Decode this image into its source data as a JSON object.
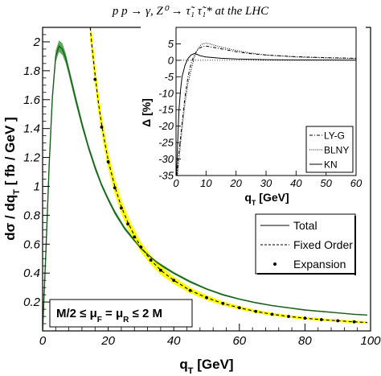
{
  "title": "p p → γ, Z⁰ → τ̃₁ τ̃₁* at the LHC",
  "chart_data": [
    {
      "type": "line",
      "xlabel": "q_T [GeV]",
      "ylabel": "dσ / dq_T [ fb / GeV ]",
      "xlim": [
        0,
        100
      ],
      "ylim": [
        0,
        2.1
      ],
      "xticks": [
        0,
        20,
        40,
        60,
        80,
        100
      ],
      "yticks": [
        0.2,
        0.4,
        0.6,
        0.8,
        1,
        1.2,
        1.4,
        1.6,
        1.8,
        2
      ],
      "grid": false,
      "legend_position": "right",
      "annotation": "M/2 ≤ μ_F = μ_R ≤ 2 M",
      "series": [
        {
          "name": "Total",
          "style": "solid",
          "color": "#1a5c1a",
          "band_color": "#3a9a3a",
          "x": [
            0,
            1,
            2,
            3,
            4,
            5,
            6,
            7,
            8,
            10,
            12,
            14,
            16,
            18,
            20,
            22,
            25,
            30,
            35,
            40,
            45,
            50,
            55,
            60,
            65,
            70,
            75,
            80,
            85,
            90,
            95,
            99
          ],
          "y": [
            0,
            0.55,
            1.15,
            1.62,
            1.9,
            1.97,
            1.95,
            1.89,
            1.8,
            1.61,
            1.43,
            1.27,
            1.13,
            1.01,
            0.91,
            0.82,
            0.71,
            0.57,
            0.47,
            0.4,
            0.34,
            0.29,
            0.25,
            0.22,
            0.195,
            0.175,
            0.16,
            0.145,
            0.135,
            0.125,
            0.115,
            0.11
          ],
          "band_halfwidth": [
            0,
            0.01,
            0.02,
            0.03,
            0.04,
            0.04,
            0.04,
            0.035,
            0.03,
            0.03,
            0.025,
            0.02,
            0.02,
            0.015,
            0.015,
            0.015,
            0.012,
            0.01,
            0.01,
            0.008,
            0.008,
            0.006,
            0.006,
            0.005,
            0.005,
            0.004,
            0.004,
            0.004,
            0.004,
            0.003,
            0.003,
            0.003
          ]
        },
        {
          "name": "Fixed Order",
          "style": "dashed",
          "color": "#000000",
          "band_color": "#ffff00",
          "x": [
            14.5,
            15,
            16,
            17,
            18,
            19,
            20,
            22,
            24,
            26,
            28,
            30,
            33,
            36,
            40,
            45,
            50,
            55,
            60,
            65,
            70,
            75,
            80,
            85,
            90,
            95,
            99
          ],
          "y": [
            2.1,
            1.98,
            1.77,
            1.58,
            1.43,
            1.3,
            1.18,
            1.0,
            0.86,
            0.75,
            0.66,
            0.58,
            0.49,
            0.42,
            0.35,
            0.28,
            0.23,
            0.19,
            0.16,
            0.135,
            0.115,
            0.1,
            0.088,
            0.078,
            0.07,
            0.063,
            0.058
          ],
          "band_halfwidth": [
            0.09,
            0.085,
            0.08,
            0.075,
            0.07,
            0.065,
            0.06,
            0.055,
            0.05,
            0.045,
            0.04,
            0.035,
            0.032,
            0.03,
            0.025,
            0.02,
            0.018,
            0.015,
            0.013,
            0.012,
            0.011,
            0.01,
            0.01,
            0.01,
            0.009,
            0.009,
            0.009
          ]
        },
        {
          "name": "Expansion",
          "style": "dots",
          "color": "#000000",
          "x": [
            16,
            18,
            20,
            22,
            24,
            26,
            28,
            30,
            33,
            36,
            40,
            45,
            50,
            55,
            60,
            65,
            70,
            75,
            80,
            85,
            90,
            95
          ],
          "y": [
            1.74,
            1.41,
            1.17,
            0.99,
            0.85,
            0.74,
            0.65,
            0.58,
            0.49,
            0.42,
            0.35,
            0.28,
            0.23,
            0.19,
            0.16,
            0.135,
            0.115,
            0.1,
            0.088,
            0.078,
            0.07,
            0.063
          ]
        }
      ]
    },
    {
      "type": "line",
      "xlabel": "q_T [GeV]",
      "ylabel": "Δ [%]",
      "xlim": [
        0,
        60
      ],
      "ylim": [
        -35,
        10
      ],
      "xticks": [
        0,
        10,
        20,
        30,
        40,
        50,
        60
      ],
      "yticks": [
        -35,
        -30,
        -25,
        -20,
        -15,
        -10,
        -5,
        0,
        5
      ],
      "grid": false,
      "legend_position": "bottom-right",
      "series": [
        {
          "name": "LY-G",
          "style": "dashdot",
          "x": [
            0.3,
            1,
            2,
            3,
            4,
            5,
            6,
            7,
            8,
            9,
            10,
            12,
            15,
            20,
            25,
            30,
            40,
            50,
            60
          ],
          "y": [
            -35,
            -28,
            -19,
            -11,
            -5,
            -1,
            1.5,
            3,
            3.8,
            4.2,
            4.3,
            4.0,
            3.5,
            2.6,
            2.0,
            1.6,
            1.1,
            0.8,
            0.6
          ]
        },
        {
          "name": "BLNY",
          "style": "dotted",
          "x": [
            0.5,
            1,
            2,
            3,
            4,
            5,
            6,
            7,
            8,
            9,
            10,
            12,
            15,
            20,
            25,
            30,
            40,
            50,
            60
          ],
          "y": [
            -35,
            -30,
            -21,
            -13,
            -7,
            -3,
            0.5,
            3,
            4.5,
            5.0,
            5.2,
            4.8,
            4.0,
            3.0,
            2.2,
            1.6,
            1.0,
            0.7,
            0.5
          ]
        },
        {
          "name": "KN",
          "style": "solid",
          "x": [
            0.2,
            0.5,
            1,
            1.5,
            2,
            3,
            4,
            5,
            6,
            7,
            8,
            10,
            15,
            20,
            30,
            40,
            50,
            60
          ],
          "y": [
            -35,
            -26,
            -15,
            -9,
            -5,
            -1.5,
            0.5,
            1.6,
            2.0,
            1.8,
            1.4,
            1.0,
            0.6,
            0.4,
            0.2,
            0.1,
            0.1,
            0.05
          ]
        }
      ]
    }
  ]
}
